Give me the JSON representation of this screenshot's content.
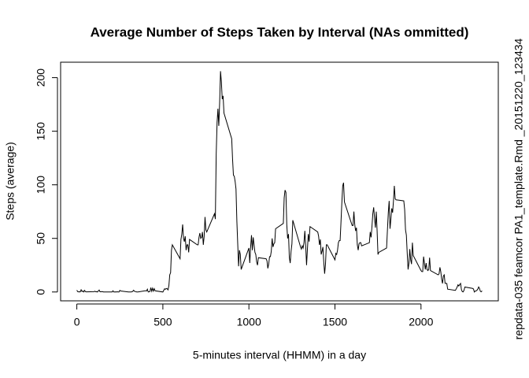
{
  "chart_data": {
    "type": "line",
    "title": "Average Number of Steps Taken by Interval (NAs ommitted)",
    "x_label": "5-minutes interval (HHMM) in a day",
    "y_label": "Steps (average)",
    "side_note": "repdata-035 feamcor PA1_template.Rmd _20151220_123434",
    "color": "#000000",
    "xlim": [
      -94.2,
      2449.2
    ],
    "xticks": [
      0,
      500,
      1000,
      1500,
      2000
    ],
    "ylim": [
      -8.25,
      214.4
    ],
    "yticks": [
      0,
      50,
      100,
      150,
      200
    ],
    "x": [
      0,
      5,
      10,
      15,
      20,
      25,
      30,
      35,
      40,
      45,
      50,
      55,
      100,
      105,
      110,
      115,
      120,
      125,
      130,
      135,
      140,
      145,
      150,
      155,
      200,
      205,
      210,
      215,
      220,
      225,
      230,
      235,
      240,
      245,
      250,
      255,
      300,
      305,
      310,
      315,
      320,
      325,
      330,
      335,
      340,
      345,
      350,
      355,
      400,
      405,
      410,
      415,
      420,
      425,
      430,
      435,
      440,
      445,
      450,
      455,
      500,
      505,
      510,
      515,
      520,
      525,
      530,
      535,
      540,
      545,
      550,
      555,
      600,
      605,
      610,
      615,
      620,
      625,
      630,
      635,
      640,
      645,
      650,
      655,
      700,
      705,
      710,
      715,
      720,
      725,
      730,
      735,
      740,
      745,
      750,
      755,
      800,
      805,
      810,
      815,
      820,
      825,
      830,
      835,
      840,
      845,
      850,
      855,
      900,
      905,
      910,
      915,
      920,
      925,
      930,
      935,
      940,
      945,
      950,
      955,
      1000,
      1005,
      1010,
      1015,
      1020,
      1025,
      1030,
      1035,
      1040,
      1045,
      1050,
      1055,
      1100,
      1105,
      1110,
      1115,
      1120,
      1125,
      1130,
      1135,
      1140,
      1145,
      1150,
      1155,
      1200,
      1205,
      1210,
      1215,
      1220,
      1225,
      1230,
      1235,
      1240,
      1245,
      1250,
      1255,
      1300,
      1305,
      1310,
      1315,
      1320,
      1325,
      1330,
      1335,
      1340,
      1345,
      1350,
      1355,
      1400,
      1405,
      1410,
      1415,
      1420,
      1425,
      1430,
      1435,
      1440,
      1445,
      1450,
      1455,
      1500,
      1505,
      1510,
      1515,
      1520,
      1525,
      1530,
      1535,
      1540,
      1545,
      1550,
      1555,
      1600,
      1605,
      1610,
      1615,
      1620,
      1625,
      1630,
      1635,
      1640,
      1645,
      1650,
      1655,
      1700,
      1705,
      1710,
      1715,
      1720,
      1725,
      1730,
      1735,
      1740,
      1745,
      1750,
      1755,
      1800,
      1805,
      1810,
      1815,
      1820,
      1825,
      1830,
      1835,
      1840,
      1845,
      1850,
      1855,
      1900,
      1905,
      1910,
      1915,
      1920,
      1925,
      1930,
      1935,
      1940,
      1945,
      1950,
      1955,
      2000,
      2005,
      2010,
      2015,
      2020,
      2025,
      2030,
      2035,
      2040,
      2045,
      2050,
      2055,
      2100,
      2105,
      2110,
      2115,
      2120,
      2125,
      2130,
      2135,
      2140,
      2145,
      2150,
      2155,
      2200,
      2205,
      2210,
      2215,
      2220,
      2225,
      2230,
      2235,
      2240,
      2245,
      2250,
      2255,
      2300,
      2305,
      2310,
      2315,
      2320,
      2325,
      2330,
      2335,
      2340,
      2345,
      2350,
      2355
    ],
    "values": [
      1.7,
      0.3,
      0.1,
      0.2,
      0.1,
      2.1,
      0.5,
      0.9,
      0,
      1.5,
      0.3,
      0.1,
      0.3,
      0.7,
      0.2,
      0.3,
      0,
      1.1,
      1.8,
      0.2,
      0.2,
      0.4,
      0.3,
      0,
      0,
      0,
      1.1,
      0,
      0,
      0.1,
      0,
      0.2,
      0,
      0,
      1.5,
      0.9,
      0,
      0,
      0,
      0,
      0.2,
      0.6,
      1.6,
      0.6,
      0.5,
      0.1,
      0,
      0,
      1.2,
      0.9,
      2.6,
      0,
      0.3,
      0.4,
      4.1,
      0.7,
      3.5,
      0.8,
      3.1,
      1.1,
      0,
      1.5,
      3,
      2.5,
      3.3,
      3,
      2,
      6,
      16,
      18,
      39,
      44,
      31,
      49,
      54,
      63,
      50,
      47,
      52,
      39,
      44,
      44,
      37,
      49,
      44,
      44,
      51,
      55,
      50,
      51,
      56,
      44,
      52,
      70,
      58,
      56,
      73,
      68,
      129,
      158,
      171,
      155,
      177,
      206,
      196,
      180,
      183,
      167,
      143,
      124,
      109,
      108,
      103,
      96,
      66,
      45,
      24,
      39,
      35,
      21,
      41,
      27,
      42,
      53,
      39,
      51,
      44,
      37,
      35,
      28,
      25,
      32,
      31,
      29,
      22,
      26,
      33,
      33,
      38,
      50,
      42,
      45,
      46,
      59,
      64,
      88,
      95,
      93,
      63,
      50,
      54,
      32,
      27,
      38,
      45,
      67,
      42,
      40,
      43,
      41,
      46,
      57,
      43,
      25,
      40,
      54,
      47,
      61,
      56,
      52,
      44,
      49,
      35,
      38,
      42,
      28,
      17,
      26,
      44,
      44,
      30,
      36,
      35,
      39,
      46,
      48,
      48,
      65,
      83,
      99,
      102,
      84,
      62,
      62,
      75,
      63,
      57,
      60,
      44,
      39,
      45,
      46,
      46,
      43,
      46,
      56,
      51,
      61,
      73,
      79,
      69,
      60,
      75,
      57,
      35,
      37,
      41,
      58,
      74,
      85,
      59,
      68,
      78,
      74,
      85,
      99,
      87,
      86,
      85,
      77,
      58,
      53,
      36,
      21,
      27,
      40,
      30,
      26,
      46,
      34,
      20,
      19,
      19,
      33,
      27,
      21,
      27,
      21,
      20,
      21,
      32,
      20,
      16,
      17,
      23,
      19,
      12,
      8,
      15,
      16,
      8,
      8,
      8,
      2.6,
      1.5,
      3,
      4.6,
      6.7,
      5.6,
      7,
      8,
      2.2,
      0.3,
      0.1,
      1.6,
      4.6,
      3.3,
      2.8,
      0,
      0.8,
      1,
      1.6,
      2.6,
      4.7,
      3.3,
      0.6,
      0.2,
      1.1
    ]
  }
}
